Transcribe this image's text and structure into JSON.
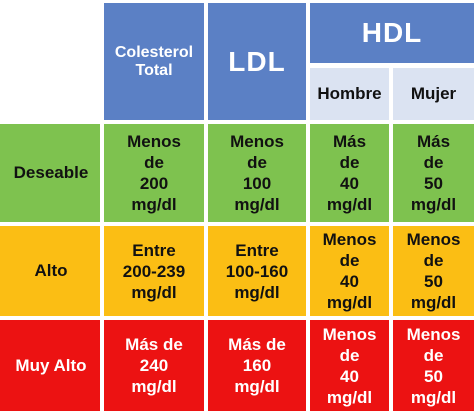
{
  "header": {
    "colesterol_total": [
      "Colesterol",
      "Total"
    ],
    "ldl": "LDL",
    "hdl": "HDL",
    "hombre": "Hombre",
    "mujer": "Mujer"
  },
  "rows": [
    {
      "label": "Deseable",
      "colesterol_total": [
        "Menos",
        "de",
        "200",
        "mg/dl"
      ],
      "ldl": [
        "Menos",
        "de",
        "100",
        "mg/dl"
      ],
      "hdl_hombre": [
        "Más",
        "de",
        "40",
        "mg/dl"
      ],
      "hdl_mujer": [
        "Más",
        "de",
        "50",
        "mg/dl"
      ]
    },
    {
      "label": "Alto",
      "colesterol_total": [
        "Entre",
        "200-239",
        "mg/dl"
      ],
      "ldl": [
        "Entre",
        "100-160",
        "mg/dl"
      ],
      "hdl_hombre": [
        "Menos",
        "de",
        "40",
        "mg/dl"
      ],
      "hdl_mujer": [
        "Menos",
        "de",
        "50",
        "mg/dl"
      ]
    },
    {
      "label": "Muy Alto",
      "colesterol_total": [
        "Más de",
        "240",
        "mg/dl"
      ],
      "ldl": [
        "Más de",
        "160",
        "mg/dl"
      ],
      "hdl_hombre": [
        "Menos",
        "de",
        "40",
        "mg/dl"
      ],
      "hdl_mujer": [
        "Menos",
        "de",
        "50",
        "mg/dl"
      ]
    }
  ],
  "colors": {
    "header": "#5b80c5",
    "subheader": "#dbe3f2",
    "deseable": "#7ec24f",
    "alto": "#fbbe14",
    "muy_alto": "#ec1212"
  }
}
